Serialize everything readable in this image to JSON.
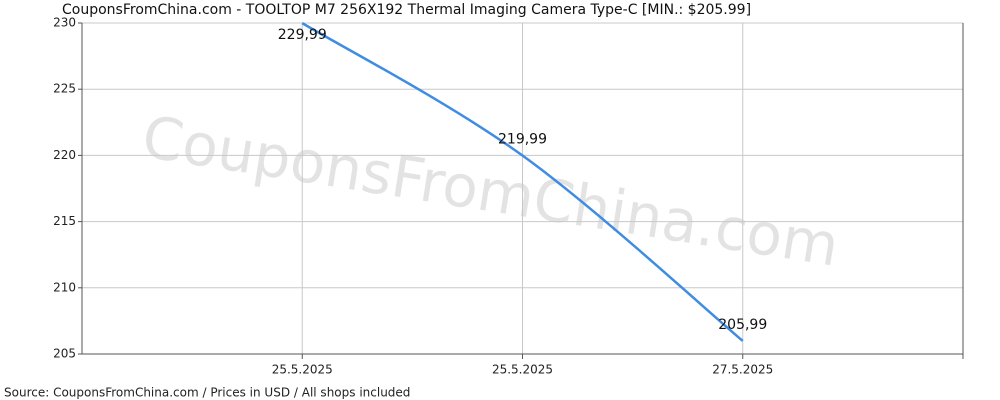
{
  "chart_data": {
    "type": "line",
    "title": "CouponsFromChina.com - TOOLTOP M7 256X192 Thermal Imaging Camera Type-C [MIN.: $205.99]",
    "source": "Source: CouponsFromChina.com / Prices in USD / All shops included",
    "watermark": "CouponsFromChina.com",
    "categories": [
      "25.5.2025",
      "25.5.2025",
      "27.5.2025"
    ],
    "series": [
      {
        "name": "TOOLTOP M7 256X192 Thermal Imaging Camera Type-C",
        "color": "#3f8de3",
        "values": [
          229.99,
          219.99,
          205.99
        ],
        "value_labels": [
          "229,99",
          "219,99",
          "205,99"
        ]
      }
    ],
    "ylim": [
      205,
      230
    ],
    "yticks": [
      205,
      210,
      215,
      220,
      225,
      230
    ],
    "grid": true
  }
}
